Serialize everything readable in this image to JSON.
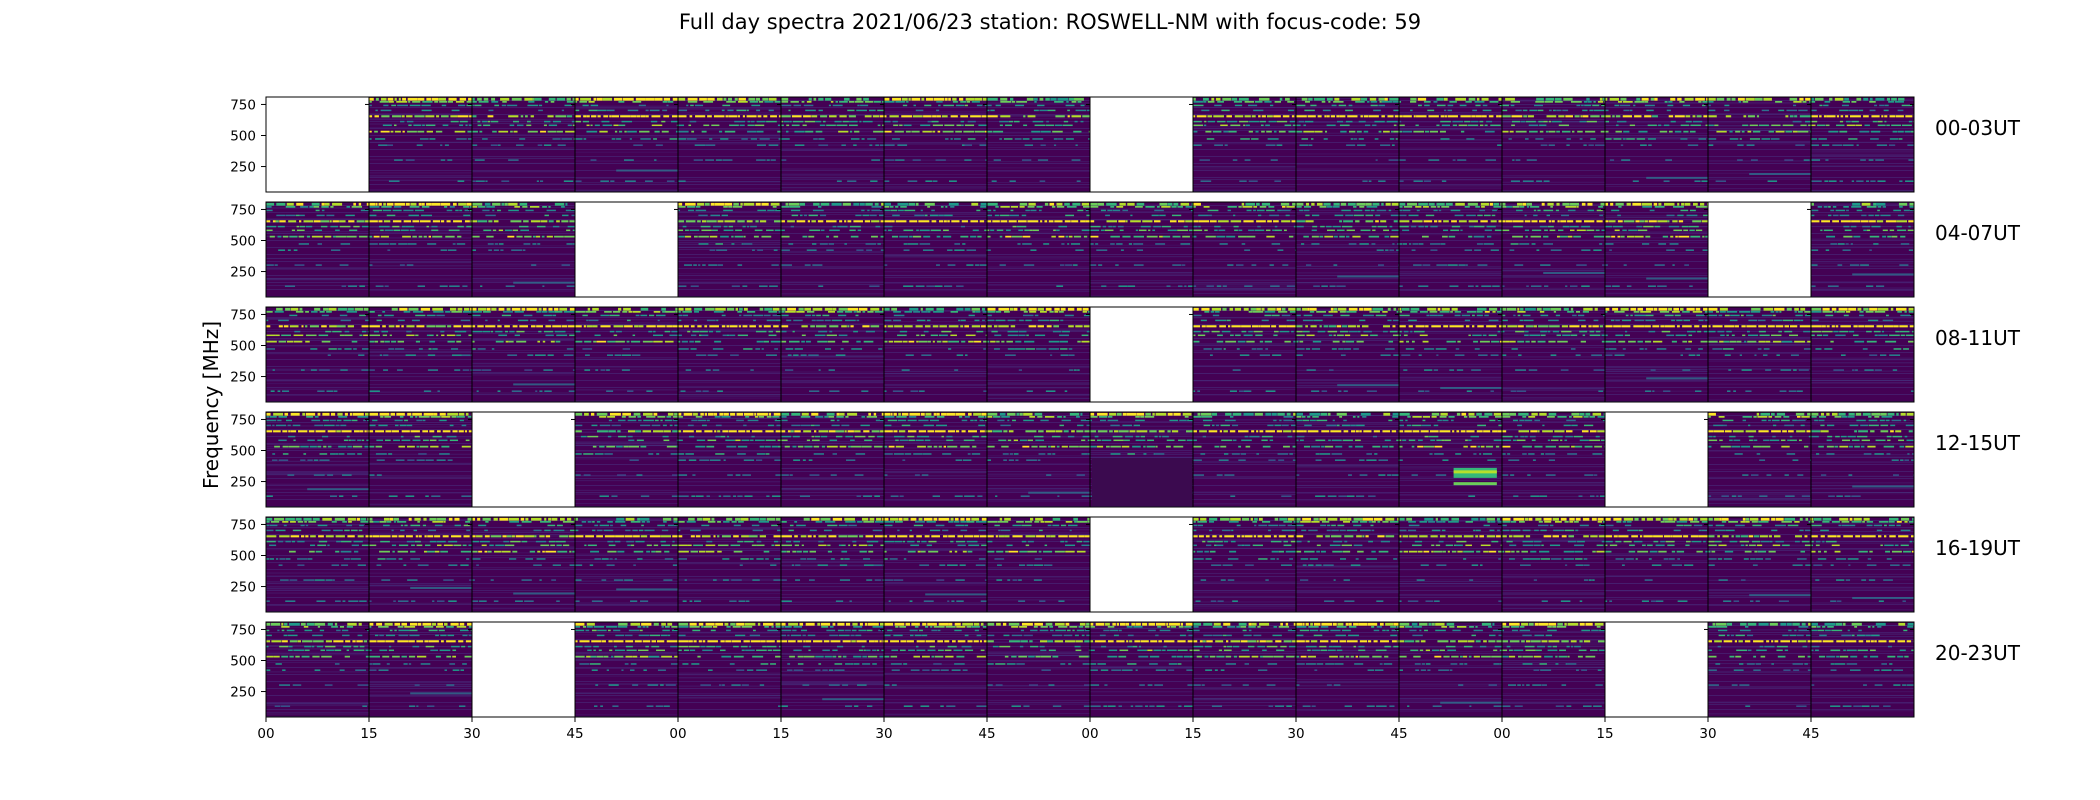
{
  "chart_data": {
    "type": "heatmap",
    "title": "Full day spectra 2021/06/23 station: ROSWELL-NM with focus-code: 59",
    "ylabel": "Frequency [MHz]",
    "ylim": [
      45,
      810
    ],
    "y_ticks": [
      250,
      500,
      750
    ],
    "x_ticks": [
      "00",
      "15",
      "30",
      "45",
      "00",
      "15",
      "30",
      "45",
      "00",
      "15",
      "30",
      "45",
      "00",
      "15",
      "30",
      "45"
    ],
    "colormap": "viridis",
    "colors": {
      "background": "#440154",
      "low": "#482878",
      "mid": "#26828e",
      "high": "#fde725"
    },
    "panels_per_row": 16,
    "minutes_per_panel": 15,
    "rows": [
      {
        "label": "00-03UT",
        "missing": [
          0,
          8
        ]
      },
      {
        "label": "04-07UT",
        "missing": [
          3,
          14
        ]
      },
      {
        "label": "08-11UT",
        "missing": [
          8
        ]
      },
      {
        "label": "12-15UT",
        "missing": [
          2,
          13
        ]
      },
      {
        "label": "16-19UT",
        "missing": [
          8
        ]
      },
      {
        "label": "20-23UT",
        "missing": [
          2,
          13
        ]
      }
    ]
  }
}
